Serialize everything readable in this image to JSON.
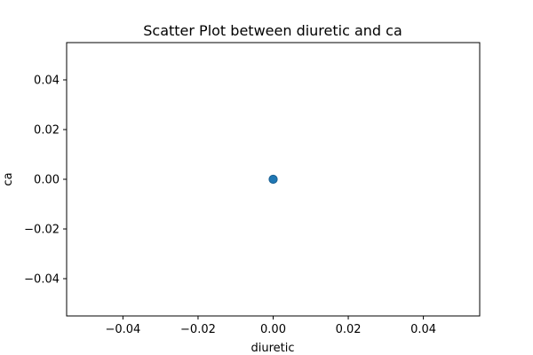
{
  "chart_data": {
    "type": "scatter",
    "title": "Scatter Plot between diuretic and ca",
    "xlabel": "diuretic",
    "ylabel": "ca",
    "xlim": [
      -0.055,
      0.055
    ],
    "ylim": [
      -0.055,
      0.055
    ],
    "x_ticks": [
      {
        "value": -0.04,
        "label": "−0.04"
      },
      {
        "value": -0.02,
        "label": "−0.02"
      },
      {
        "value": 0.0,
        "label": "0.00"
      },
      {
        "value": 0.02,
        "label": "0.02"
      },
      {
        "value": 0.04,
        "label": "0.04"
      }
    ],
    "y_ticks": [
      {
        "value": -0.04,
        "label": "−0.04"
      },
      {
        "value": -0.02,
        "label": "−0.02"
      },
      {
        "value": 0.0,
        "label": "0.00"
      },
      {
        "value": 0.02,
        "label": "0.02"
      },
      {
        "value": 0.04,
        "label": "0.04"
      }
    ],
    "grid": false,
    "points": [
      {
        "x": 0.0,
        "y": 0.0
      }
    ],
    "marker_color": "#1f77b4",
    "marker_edge_color": "#1a5f91"
  }
}
